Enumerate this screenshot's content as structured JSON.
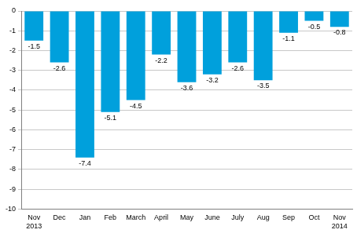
{
  "chart_data": {
    "type": "bar",
    "categories": [
      [
        "Nov",
        "2013"
      ],
      "Dec",
      "Jan",
      "Feb",
      "March",
      "April",
      "May",
      "June",
      "July",
      "Aug",
      "Sep",
      "Oct",
      [
        "Nov",
        "2014"
      ]
    ],
    "values": [
      -1.5,
      -2.6,
      -7.4,
      -5.1,
      -4.5,
      -2.2,
      -3.6,
      -3.2,
      -2.6,
      -3.5,
      -1.1,
      -0.5,
      -0.8
    ],
    "color": "#00a0dc",
    "ylim": [
      -10,
      0
    ],
    "yticks": [
      -10,
      -9,
      -8,
      -7,
      -6,
      -5,
      -4,
      -3,
      -2,
      -1,
      0
    ],
    "grid": true,
    "data_labels": true
  }
}
